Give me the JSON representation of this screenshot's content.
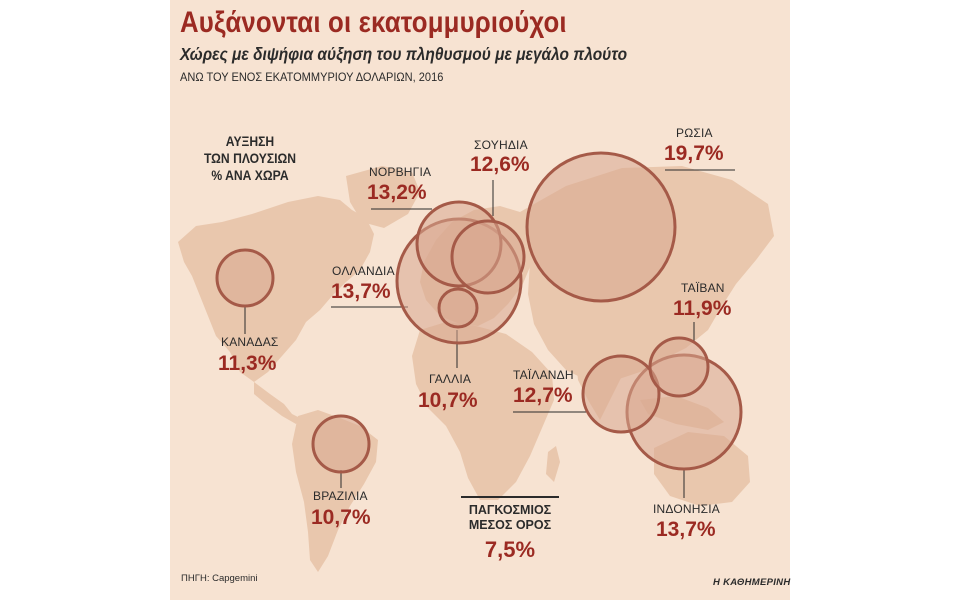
{
  "title": "Αυξάνονται οι εκατομμυριούχοι",
  "subtitle": "Χώρες με διψήφια αύξηση του πληθυσμού με μεγάλο πλούτο",
  "unit_note": "ΑΝΩ ΤΟΥ ΕΝΟΣ ΕΚΑΤΟΜΜΥΡΙΟΥ ΔΟΛΑΡΙΩΝ, 2016",
  "legend": {
    "line1": "ΑΥΞΗΣΗ",
    "line2": "ΤΩΝ ΠΛΟΥΣΙΩΝ",
    "line3": "% ΑΝΑ ΧΩΡΑ"
  },
  "chart_data": {
    "type": "bubble-map",
    "title": "Αυξάνονται οι εκατομμυριούχοι",
    "subtitle": "Χώρες με διψήφια αύξηση του πληθυσμού με μεγάλο πλούτο",
    "unit": "%",
    "series": [
      {
        "name": "ΚΑΝΑΔΑΣ",
        "display": "11,3%",
        "value": 11.3
      },
      {
        "name": "ΝΟΡΒΗΓΙΑ",
        "display": "13,2%",
        "value": 13.2
      },
      {
        "name": "ΣΟΥΗΔΙΑ",
        "display": "12,6%",
        "value": 12.6
      },
      {
        "name": "ΡΩΣΙΑ",
        "display": "19,7%",
        "value": 19.7
      },
      {
        "name": "ΟΛΛΑΝΔΙΑ",
        "display": "13,7%",
        "value": 13.7
      },
      {
        "name": "ΓΑΛΛΙΑ",
        "display": "10,7%",
        "value": 10.7
      },
      {
        "name": "ΤΑΪΒΑΝ",
        "display": "11,9%",
        "value": 11.9
      },
      {
        "name": "ΤΑΪΛΑΝΔΗ",
        "display": "12,7%",
        "value": 12.7
      },
      {
        "name": "ΒΡΑΖΙΛΙΑ",
        "display": "10,7%",
        "value": 10.7
      },
      {
        "name": "ΙΝΔΟΝΗΣΙΑ",
        "display": "13,7%",
        "value": 13.7
      }
    ],
    "global_average": {
      "line1": "ΠΑΓΚΟΣΜΙΟΣ",
      "line2": "ΜΕΣΟΣ ΟΡΟΣ",
      "display": "7,5%",
      "value": 7.5
    }
  },
  "source": "ΠΗΓΗ: Capgemini",
  "publisher": "Η ΚΑΘΗΜΕΡΙΝΗ",
  "colors": {
    "background": "#f7e3d2",
    "land": "#e9c7ad",
    "bubble_fill": "#d8a890",
    "bubble_stroke": "#a55a48",
    "accent": "#9b2a22",
    "text": "#2b2b2b"
  }
}
